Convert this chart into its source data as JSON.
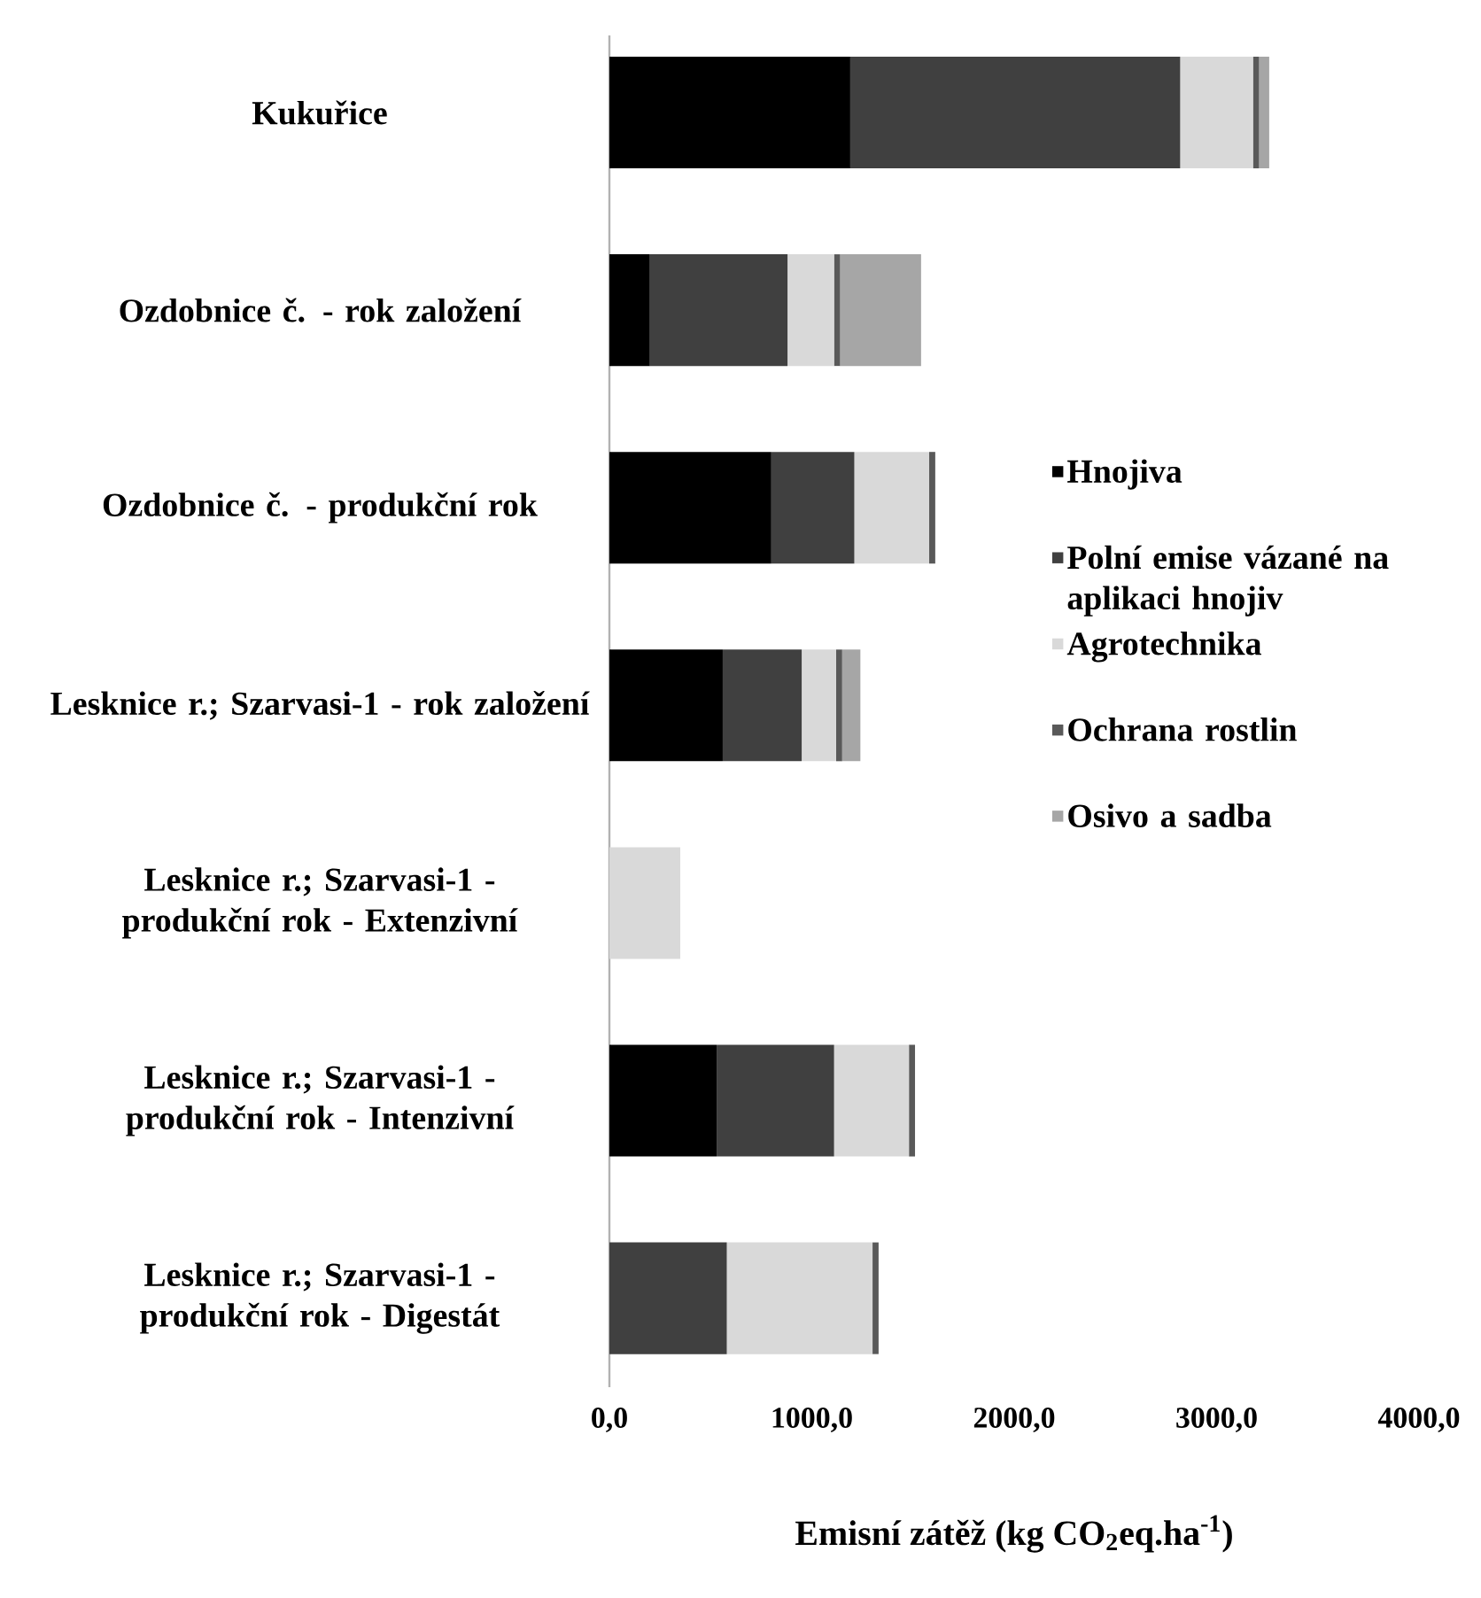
{
  "chart_data": {
    "type": "bar",
    "orientation": "horizontal",
    "stacked": true,
    "categories": [
      "Kukuřice",
      "Ozdobnice č. - rok založení",
      "Ozdobnice č. - produkční rok",
      "Lesknice r.; Szarvasi-1 - rok založení",
      "Lesknice r.; Szarvasi-1 - produkční rok - Extenzivní",
      "Lesknice r.; Szarvasi-1 - produkční rok - Intenzivní",
      "Lesknice r.; Szarvasi-1 - produkční rok - Digestát"
    ],
    "series": [
      {
        "name": "Hnojiva",
        "color": "#000000",
        "values": [
          1190,
          200,
          800,
          560,
          null,
          530,
          null
        ]
      },
      {
        "name": "Polní emise vázané na aplikaci hnojiv",
        "color": "#404040",
        "values": [
          1630,
          680,
          410,
          390,
          null,
          580,
          580
        ]
      },
      {
        "name": "Agrotechnika",
        "color": "#d9d9d9",
        "values": [
          360,
          230,
          370,
          170,
          350,
          370,
          720
        ]
      },
      {
        "name": "Ochrana rostlin",
        "color": "#595959",
        "values": [
          30,
          30,
          30,
          30,
          null,
          30,
          30
        ]
      },
      {
        "name": "Osivo a sadba",
        "color": "#a6a6a6",
        "values": [
          50,
          400,
          null,
          90,
          null,
          null,
          null
        ]
      }
    ],
    "xlabel": "Emisní zátěž (kg CO$_{2}$eq.ha$^{-1}$)",
    "xlim": [
      0,
      4000
    ],
    "xticks": [
      {
        "value": 0,
        "label": "0,0"
      },
      {
        "value": 1000,
        "label": "1000,0"
      },
      {
        "value": 2000,
        "label": "2000,0"
      },
      {
        "value": 3000,
        "label": "3000,0"
      },
      {
        "value": 4000,
        "label": "4000,0"
      }
    ],
    "legend": "right"
  }
}
